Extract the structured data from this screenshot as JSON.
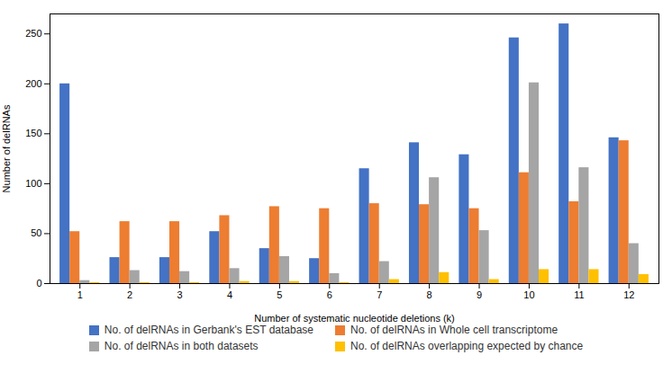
{
  "chart_data": {
    "type": "bar",
    "xlabel": "Number of systematic nucleotide deletions (k)",
    "ylabel": "Number of delRNAs",
    "categories": [
      1,
      2,
      3,
      4,
      5,
      6,
      7,
      8,
      9,
      10,
      11,
      12
    ],
    "series": [
      {
        "name": "No. of delRNAs in Gerbank's EST database",
        "color": "#4472C4",
        "values": [
          200,
          26,
          26,
          52,
          35,
          25,
          115,
          141,
          129,
          246,
          260,
          146
        ]
      },
      {
        "name": "No. of delRNAs in Whole cell transcriptome",
        "color": "#ED7D31",
        "values": [
          52,
          62,
          62,
          68,
          77,
          75,
          80,
          79,
          75,
          111,
          82,
          143
        ]
      },
      {
        "name": "No. of delRNAs in both datasets",
        "color": "#A5A5A5",
        "values": [
          3,
          13,
          12,
          15,
          27,
          10,
          22,
          106,
          53,
          201,
          116,
          40
        ]
      },
      {
        "name": "No. of delRNAs overlapping expected by chance",
        "color": "#FFC000",
        "values": [
          1,
          1,
          1,
          2,
          2,
          1,
          4,
          11,
          4,
          14,
          14,
          9
        ]
      }
    ],
    "ylim": [
      0,
      270
    ],
    "yticks": [
      0,
      50,
      100,
      150,
      200,
      250
    ],
    "grid": false,
    "legend": "bottom"
  }
}
